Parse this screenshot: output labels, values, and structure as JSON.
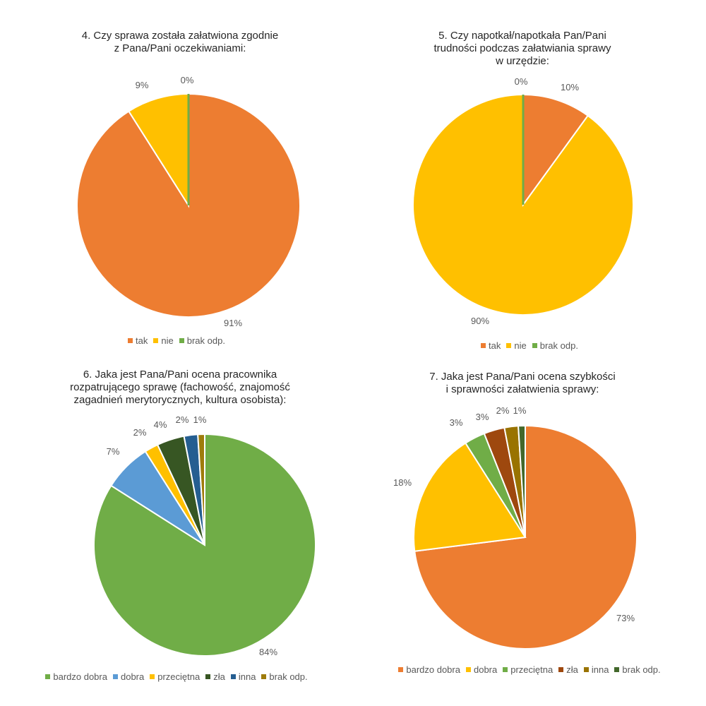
{
  "chart_data": [
    {
      "type": "pie",
      "title": "4. Czy sprawa została załatwiona zgodnie\nz Pana/Pani oczekiwaniami:",
      "categories": [
        "tak",
        "nie",
        "brak odp."
      ],
      "values": [
        91,
        9,
        0
      ],
      "data_labels": [
        "91%",
        "9%",
        "0%"
      ],
      "colors": [
        "#ED7D31",
        "#FFC000",
        "#70AD47"
      ],
      "legend_position": "bottom"
    },
    {
      "type": "pie",
      "title": "5. Czy napotkał/napotkała Pan/Pani\ntrudności podczas załatwiania sprawy\nw urzędzie:",
      "categories": [
        "tak",
        "nie",
        "brak odp."
      ],
      "values": [
        10,
        90,
        0
      ],
      "data_labels": [
        "10%",
        "90%",
        "0%"
      ],
      "colors": [
        "#ED7D31",
        "#FFC000",
        "#70AD47"
      ],
      "legend_position": "bottom"
    },
    {
      "type": "pie",
      "title": "6. Jaka jest Pana/Pani ocena pracownika\nrozpatrującego sprawę (fachowość, znajomość\nzagadnień merytorycznych, kultura osobista):",
      "categories": [
        "bardzo dobra",
        "dobra",
        "przeciętna",
        "zła",
        "inna",
        "brak odp."
      ],
      "values": [
        84,
        7,
        2,
        4,
        2,
        1
      ],
      "data_labels": [
        "84%",
        "7%",
        "2%",
        "4%",
        "2%",
        "1%"
      ],
      "colors": [
        "#70AD47",
        "#5B9BD5",
        "#FFC000",
        "#375623",
        "#255E91",
        "#9E7C0C"
      ],
      "legend_position": "bottom"
    },
    {
      "type": "pie",
      "title": "7. Jaka jest Pana/Pani ocena szybkości\ni sprawności załatwienia sprawy:",
      "categories": [
        "bardzo dobra",
        "dobra",
        "przeciętna",
        "zła",
        "inna",
        "brak odp."
      ],
      "values": [
        73,
        18,
        3,
        3,
        2,
        1
      ],
      "data_labels": [
        "73%",
        "18%",
        "3%",
        "3%",
        "2%",
        "1%"
      ],
      "colors": [
        "#ED7D31",
        "#FFC000",
        "#70AD47",
        "#9E480E",
        "#997300",
        "#43682B"
      ],
      "legend_position": "bottom"
    }
  ]
}
